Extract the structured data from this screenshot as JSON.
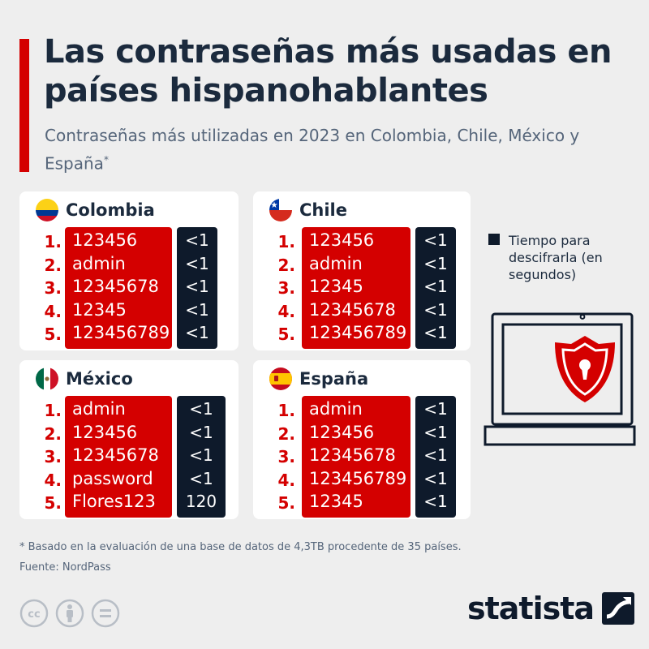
{
  "header": {
    "title": "Las contraseñas más usadas en países hispanohablantes",
    "subtitle": "Contraseñas más utilizadas en 2023 en Colombia, Chile, México y España",
    "subtitle_mark": "*"
  },
  "legend": {
    "label": "Tiempo para descifrarla (en segundos)",
    "color": "#0e1a2b"
  },
  "chart_data": {
    "type": "table",
    "columns": [
      "rank",
      "password",
      "time_to_crack"
    ],
    "tables": [
      {
        "country": "Colombia",
        "flag_icon": "colombia-flag-icon",
        "rows": [
          {
            "rank": "1.",
            "password": "123456",
            "time": "<1"
          },
          {
            "rank": "2.",
            "password": "admin",
            "time": "<1"
          },
          {
            "rank": "3.",
            "password": "12345678",
            "time": "<1"
          },
          {
            "rank": "4.",
            "password": "12345",
            "time": "<1"
          },
          {
            "rank": "5.",
            "password": "123456789",
            "time": "<1"
          }
        ]
      },
      {
        "country": "Chile",
        "flag_icon": "chile-flag-icon",
        "rows": [
          {
            "rank": "1.",
            "password": "123456",
            "time": "<1"
          },
          {
            "rank": "2.",
            "password": "admin",
            "time": "<1"
          },
          {
            "rank": "3.",
            "password": "12345",
            "time": "<1"
          },
          {
            "rank": "4.",
            "password": "12345678",
            "time": "<1"
          },
          {
            "rank": "5.",
            "password": "123456789",
            "time": "<1"
          }
        ]
      },
      {
        "country": "México",
        "flag_icon": "mexico-flag-icon",
        "rows": [
          {
            "rank": "1.",
            "password": "admin",
            "time": "<1"
          },
          {
            "rank": "2.",
            "password": "123456",
            "time": "<1"
          },
          {
            "rank": "3.",
            "password": "12345678",
            "time": "<1"
          },
          {
            "rank": "4.",
            "password": "password",
            "time": "<1"
          },
          {
            "rank": "5.",
            "password": "Flores123",
            "time": "120"
          }
        ]
      },
      {
        "country": "España",
        "flag_icon": "spain-flag-icon",
        "rows": [
          {
            "rank": "1.",
            "password": "admin",
            "time": "<1"
          },
          {
            "rank": "2.",
            "password": "123456",
            "time": "<1"
          },
          {
            "rank": "3.",
            "password": "12345678",
            "time": "<1"
          },
          {
            "rank": "4.",
            "password": "123456789",
            "time": "<1"
          },
          {
            "rank": "5.",
            "password": "12345",
            "time": "<1"
          }
        ]
      }
    ]
  },
  "footer": {
    "footnote": "* Basado en la evaluación de una base de datos de 4,3TB procedente de 35 países.",
    "source": "Fuente: NordPass",
    "brand": "statista"
  },
  "colors": {
    "accent_red": "#d40000",
    "dark_navy": "#0e1a2b",
    "title_text": "#1b2a3d",
    "subtitle_text": "#55657a",
    "background": "#eeeeee",
    "card": "#ffffff"
  },
  "icons": [
    "laptop-icon",
    "shield-lock-icon",
    "cc-icon",
    "by-attribution-icon",
    "no-derivatives-icon",
    "statista-logo-icon"
  ]
}
